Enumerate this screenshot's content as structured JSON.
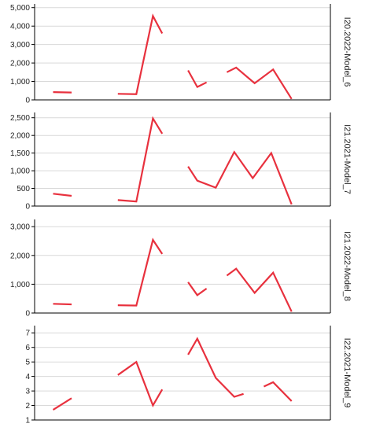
{
  "chart_data": [
    {
      "type": "line",
      "panel_label": "I20.2022-Model_6",
      "yticks": [
        0,
        1000,
        2000,
        3000,
        4000,
        5000
      ],
      "ytick_labels": [
        "0",
        "1,000",
        "2,000",
        "3,000",
        "4,000",
        "5,000"
      ],
      "ylim": [
        0,
        5200
      ],
      "xlim": [
        0,
        16
      ],
      "grid": "horizontal",
      "color": "#e8313e",
      "segments": [
        [
          [
            1.0,
            420
          ],
          [
            2.0,
            400
          ]
        ],
        [
          [
            4.5,
            330
          ],
          [
            5.5,
            310
          ],
          [
            6.4,
            4550
          ],
          [
            6.9,
            3600
          ]
        ],
        [
          [
            8.3,
            1600
          ],
          [
            8.8,
            700
          ],
          [
            9.3,
            950
          ]
        ],
        [
          [
            10.4,
            1500
          ],
          [
            10.9,
            1750
          ],
          [
            11.9,
            900
          ],
          [
            12.9,
            1650
          ],
          [
            13.9,
            50
          ]
        ]
      ]
    },
    {
      "type": "line",
      "panel_label": "I21.2021-Model_7",
      "yticks": [
        0,
        500,
        1000,
        1500,
        2000,
        2500
      ],
      "ytick_labels": [
        "0",
        "500",
        "1,000",
        "1,500",
        "2,000",
        "2,500"
      ],
      "ylim": [
        0,
        2650
      ],
      "xlim": [
        0,
        16
      ],
      "grid": "horizontal",
      "color": "#e8313e",
      "segments": [
        [
          [
            1.0,
            350
          ],
          [
            2.0,
            290
          ]
        ],
        [
          [
            4.5,
            170
          ],
          [
            5.5,
            130
          ],
          [
            6.4,
            2480
          ],
          [
            6.9,
            2050
          ]
        ],
        [
          [
            8.3,
            1120
          ],
          [
            8.8,
            720
          ],
          [
            9.8,
            520
          ],
          [
            10.8,
            1530
          ],
          [
            11.8,
            790
          ],
          [
            12.8,
            1500
          ],
          [
            13.9,
            50
          ]
        ]
      ]
    },
    {
      "type": "line",
      "panel_label": "I21.2022-Model_8",
      "yticks": [
        0,
        1000,
        2000,
        3000
      ],
      "ytick_labels": [
        "0",
        "1,000",
        "2,000",
        "3,000"
      ],
      "ylim": [
        0,
        3250
      ],
      "xlim": [
        0,
        16
      ],
      "grid": "horizontal",
      "color": "#e8313e",
      "segments": [
        [
          [
            1.0,
            320
          ],
          [
            2.0,
            300
          ]
        ],
        [
          [
            4.5,
            270
          ],
          [
            5.5,
            260
          ],
          [
            6.4,
            2540
          ],
          [
            6.9,
            2050
          ]
        ],
        [
          [
            8.3,
            1070
          ],
          [
            8.8,
            620
          ],
          [
            9.3,
            850
          ]
        ],
        [
          [
            10.4,
            1300
          ],
          [
            10.9,
            1540
          ],
          [
            11.9,
            700
          ],
          [
            12.9,
            1400
          ],
          [
            13.9,
            50
          ]
        ]
      ]
    },
    {
      "type": "line",
      "panel_label": "I22.2021-Model_9",
      "yticks": [
        1,
        2,
        3,
        4,
        5,
        6,
        7
      ],
      "ytick_labels": [
        "1",
        "2",
        "3",
        "4",
        "5",
        "6",
        "7"
      ],
      "ylim": [
        1,
        7.5
      ],
      "xlim": [
        0,
        16
      ],
      "grid": "horizontal",
      "color": "#e8313e",
      "segments": [
        [
          [
            1.0,
            1.7
          ],
          [
            2.0,
            2.5
          ]
        ],
        [
          [
            4.5,
            4.1
          ],
          [
            5.5,
            5.0
          ],
          [
            6.4,
            2.0
          ],
          [
            6.9,
            3.1
          ]
        ],
        [
          [
            8.3,
            5.5
          ],
          [
            8.8,
            6.6
          ],
          [
            9.8,
            3.9
          ],
          [
            10.8,
            2.6
          ],
          [
            11.3,
            2.8
          ]
        ],
        [
          [
            12.4,
            3.3
          ],
          [
            12.9,
            3.6
          ],
          [
            13.9,
            2.3
          ]
        ]
      ]
    }
  ]
}
